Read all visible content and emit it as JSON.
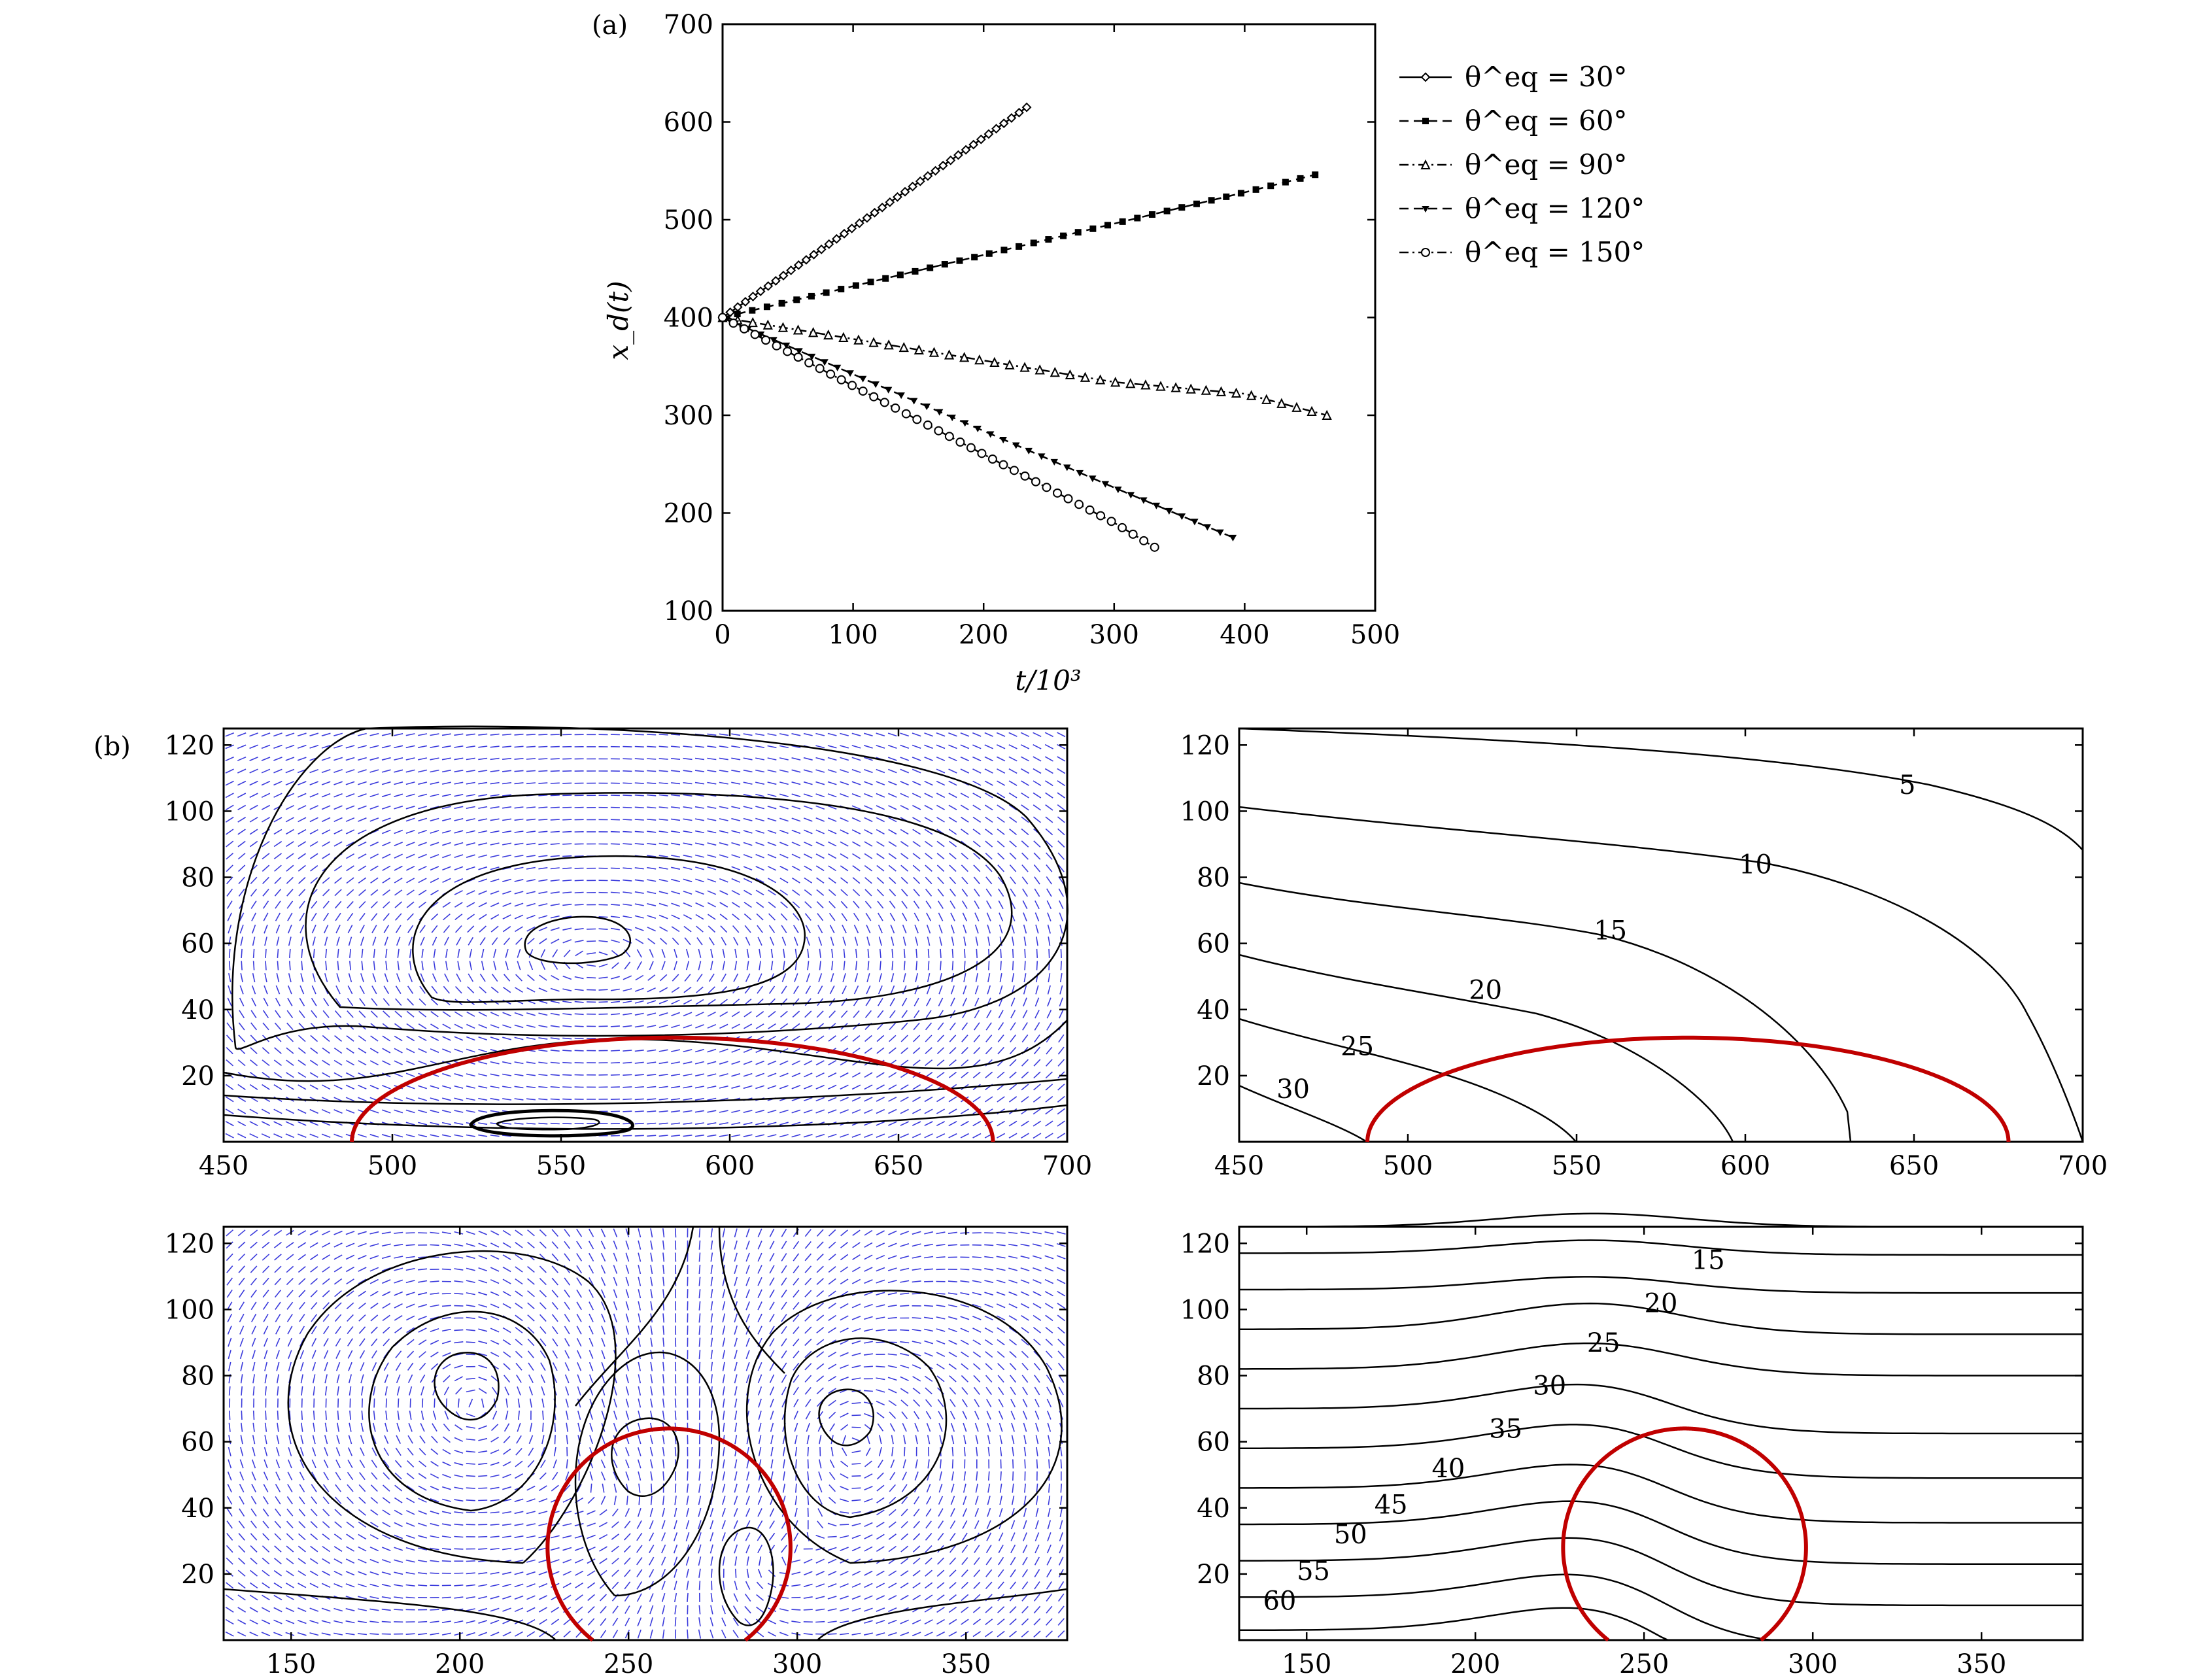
{
  "chart_data": [
    {
      "id": "a",
      "type": "line",
      "panel_label": "(a)",
      "xlabel": "t/10³",
      "ylabel": "x_d(t)",
      "xlim": [
        0,
        500
      ],
      "ylim": [
        100,
        700
      ],
      "xticks": [
        0,
        100,
        200,
        300,
        400,
        500
      ],
      "yticks": [
        100,
        200,
        300,
        400,
        500,
        600,
        700
      ],
      "grid": false,
      "legend_position": "right",
      "series": [
        {
          "name": "θ^eq = 30°",
          "marker": "diamond",
          "dash": "solid",
          "x": [
            0,
            50,
            100,
            150,
            200,
            233
          ],
          "y": [
            400,
            446,
            492,
            538,
            584,
            615
          ]
        },
        {
          "name": "θ^eq = 60°",
          "marker": "square",
          "dash": "dashed",
          "x": [
            0,
            100,
            200,
            300,
            400,
            454
          ],
          "y": [
            400,
            432,
            464,
            496,
            528,
            546
          ]
        },
        {
          "name": "θ^eq = 90°",
          "marker": "triangle",
          "dash": "dash-dot",
          "x": [
            0,
            100,
            200,
            300,
            400,
            463
          ],
          "y": [
            400,
            378,
            356,
            334,
            322,
            300
          ]
        },
        {
          "name": "θ^eq = 120°",
          "marker": "tri-down",
          "dash": "dashed",
          "x": [
            0,
            100,
            200,
            300,
            391
          ],
          "y": [
            400,
            342,
            284,
            226,
            175
          ]
        },
        {
          "name": "θ^eq = 150°",
          "marker": "circle",
          "dash": "dash-dot",
          "x": [
            0,
            50,
            100,
            150,
            200,
            250,
            300,
            331
          ],
          "y": [
            400,
            365,
            330,
            295,
            260,
            225,
            190,
            165
          ]
        }
      ]
    },
    {
      "id": "b1",
      "type": "streamline",
      "panel_label": "(b)",
      "xlim": [
        450,
        700
      ],
      "ylim": [
        0,
        125
      ],
      "xticks": [
        450,
        500,
        550,
        600,
        650,
        700
      ],
      "yticks": [
        20,
        40,
        60,
        80,
        100,
        120
      ],
      "droplet_arc": {
        "center_x": 583,
        "center_y": 31.5,
        "radius_x": 95,
        "radius_y": 31.5
      },
      "vortex_center": [
        555,
        62
      ]
    },
    {
      "id": "b2",
      "type": "contour",
      "xlim": [
        450,
        700
      ],
      "ylim": [
        0,
        125
      ],
      "xticks": [
        450,
        500,
        550,
        600,
        650,
        700
      ],
      "yticks": [
        20,
        40,
        60,
        80,
        100,
        120
      ],
      "droplet_arc": {
        "center_x": 583,
        "center_y": 31.5,
        "radius_x": 95,
        "radius_y": 31.5
      },
      "contours": [
        {
          "label": "5",
          "label_pos": [
            648,
            108
          ]
        },
        {
          "label": "10",
          "label_pos": [
            603,
            84
          ]
        },
        {
          "label": "15",
          "label_pos": [
            560,
            64
          ]
        },
        {
          "label": "20",
          "label_pos": [
            523,
            46
          ]
        },
        {
          "label": "25",
          "label_pos": [
            485,
            29
          ]
        },
        {
          "label": "30",
          "label_pos": [
            466,
            16
          ]
        }
      ]
    },
    {
      "id": "b3",
      "type": "streamline",
      "xlim": [
        130,
        380
      ],
      "ylim": [
        0,
        125
      ],
      "xticks": [
        150,
        200,
        250,
        300,
        350
      ],
      "yticks": [
        20,
        40,
        60,
        80,
        100,
        120
      ],
      "droplet_circle": {
        "center_x": 262,
        "center_y": 28,
        "radius_x": 36,
        "radius_y": 36
      }
    },
    {
      "id": "b4",
      "type": "contour",
      "xlim": [
        130,
        380
      ],
      "ylim": [
        0,
        125
      ],
      "xticks": [
        150,
        200,
        250,
        300,
        350
      ],
      "yticks": [
        20,
        40,
        60,
        80,
        100,
        120
      ],
      "droplet_circle": {
        "center_x": 262,
        "center_y": 28,
        "radius_x": 36,
        "radius_y": 36
      },
      "contours": [
        {
          "label": "15",
          "label_pos": [
            269,
            115
          ]
        },
        {
          "label": "20",
          "label_pos": [
            255,
            102
          ]
        },
        {
          "label": "25",
          "label_pos": [
            238,
            90
          ]
        },
        {
          "label": "30",
          "label_pos": [
            222,
            77
          ]
        },
        {
          "label": "35",
          "label_pos": [
            209,
            64
          ]
        },
        {
          "label": "40",
          "label_pos": [
            192,
            52
          ]
        },
        {
          "label": "45",
          "label_pos": [
            175,
            41
          ]
        },
        {
          "label": "50",
          "label_pos": [
            163,
            32
          ]
        },
        {
          "label": "55",
          "label_pos": [
            152,
            21
          ]
        },
        {
          "label": "60",
          "label_pos": [
            142,
            12
          ]
        }
      ]
    }
  ]
}
